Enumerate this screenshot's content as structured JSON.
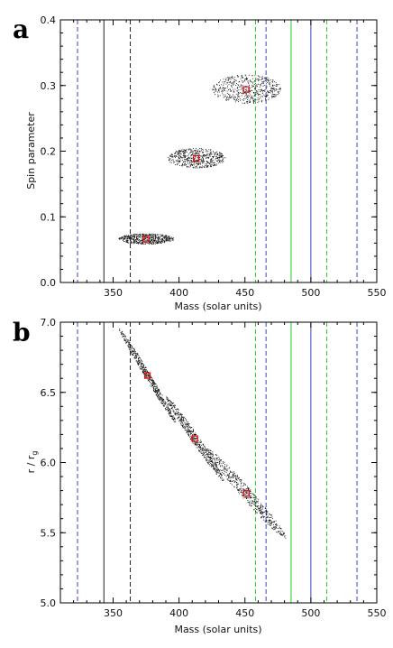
{
  "chart_data": [
    {
      "panel_label": "a",
      "type": "scatter",
      "xlabel": "Mass (solar units)",
      "ylabel": "Spin parameter",
      "xlim": [
        310,
        550
      ],
      "ylim": [
        0.0,
        0.4
      ],
      "xticks": [
        350,
        400,
        450,
        500,
        550
      ],
      "yticks": [
        0.0,
        0.1,
        0.2,
        0.3,
        0.4
      ],
      "ytick_labels": [
        "0.0",
        "0.1",
        "0.2",
        "0.3",
        "0.4"
      ],
      "grid": false,
      "clouds": [
        {
          "cx": 375,
          "cy": 0.067,
          "a": 21,
          "b": 0.008,
          "tilt": 0
        },
        {
          "cx": 413,
          "cy": 0.19,
          "a": 22,
          "b": 0.015,
          "tilt": 0
        },
        {
          "cx": 451,
          "cy": 0.295,
          "a": 26,
          "b": 0.022,
          "tilt": 0
        }
      ],
      "best_fit": [
        {
          "x": 375,
          "y": 0.066
        },
        {
          "x": 413,
          "y": 0.189
        },
        {
          "x": 451,
          "y": 0.294
        }
      ]
    },
    {
      "panel_label": "b",
      "type": "scatter",
      "xlabel": "Mass (solar units)",
      "ylabel": "r / r",
      "ylabel_sub": "g",
      "xlim": [
        310,
        550
      ],
      "ylim": [
        5.0,
        7.0
      ],
      "xticks": [
        350,
        400,
        450,
        500,
        550
      ],
      "yticks": [
        5.0,
        5.5,
        6.0,
        6.5,
        7.0
      ],
      "ytick_labels": [
        "5.0",
        "5.5",
        "6.0",
        "6.5",
        "7.0"
      ],
      "grid": false,
      "clouds": [
        {
          "cx": 376,
          "cy": 6.62,
          "a": 22,
          "b": 0.04,
          "tilt": -0.0155
        },
        {
          "cx": 412,
          "cy": 6.17,
          "a": 22,
          "b": 0.05,
          "tilt": -0.0135
        },
        {
          "cx": 451,
          "cy": 5.78,
          "a": 30,
          "b": 0.06,
          "tilt": -0.0105
        }
      ],
      "best_fit": [
        {
          "x": 376,
          "y": 6.62
        },
        {
          "x": 412,
          "y": 6.17
        },
        {
          "x": 451,
          "y": 5.78
        }
      ]
    }
  ],
  "vertical_lines": [
    {
      "x": 323,
      "color": "#3344cc",
      "style": "dashed"
    },
    {
      "x": 343,
      "color": "#222222",
      "style": "solid"
    },
    {
      "x": 363,
      "color": "#222222",
      "style": "dashed"
    },
    {
      "x": 458,
      "color": "#22cc22",
      "style": "dashed"
    },
    {
      "x": 466,
      "color": "#3344cc",
      "style": "dashed"
    },
    {
      "x": 485,
      "color": "#22cc22",
      "style": "solid"
    },
    {
      "x": 500,
      "color": "#3344cc",
      "style": "solid"
    },
    {
      "x": 512,
      "color": "#22cc22",
      "style": "dashed"
    },
    {
      "x": 535,
      "color": "#3344cc",
      "style": "dashed"
    }
  ],
  "colors": {
    "points": "#111111",
    "marker": "#dd1111",
    "axes": "#000000"
  }
}
